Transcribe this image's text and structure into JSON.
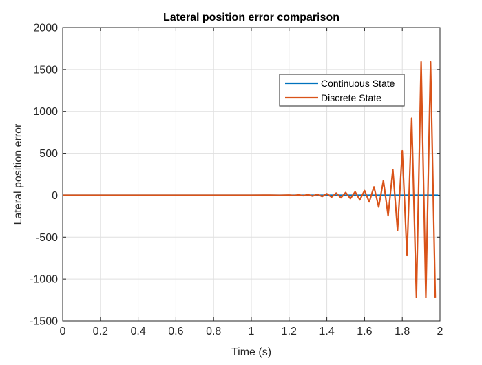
{
  "chart_data": {
    "type": "line",
    "title": "Lateral position error comparison",
    "xlabel": "Time (s)",
    "ylabel": "Lateral position error",
    "xlim": [
      0,
      2
    ],
    "ylim": [
      -1500,
      2000
    ],
    "xticks": [
      0,
      0.2,
      0.4,
      0.6,
      0.8,
      1,
      1.2,
      1.4,
      1.6,
      1.8,
      2
    ],
    "xtick_labels": [
      "0",
      "0.2",
      "0.4",
      "0.6",
      "0.8",
      "1",
      "1.2",
      "1.4",
      "1.6",
      "1.8",
      "2"
    ],
    "yticks": [
      -1500,
      -1000,
      -500,
      0,
      500,
      1000,
      1500,
      2000
    ],
    "ytick_labels": [
      "-1500",
      "-1000",
      "-500",
      "0",
      "500",
      "1000",
      "1500",
      "2000"
    ],
    "grid": true,
    "legend_position": "top-right",
    "series": [
      {
        "name": "Continuous State",
        "color": "#0072BD",
        "x": [
          0,
          0.5,
          1.0,
          1.5,
          1.99
        ],
        "y": [
          0,
          0,
          0,
          0,
          0
        ]
      },
      {
        "name": "Discrete State",
        "color": "#D95319",
        "x": [
          0,
          1.0,
          1.1,
          1.15,
          1.2,
          1.225,
          1.25,
          1.275,
          1.3,
          1.325,
          1.35,
          1.375,
          1.4,
          1.425,
          1.45,
          1.475,
          1.5,
          1.525,
          1.55,
          1.575,
          1.6,
          1.625,
          1.65,
          1.675,
          1.7,
          1.725,
          1.75,
          1.775,
          1.8,
          1.825,
          1.85,
          1.875,
          1.9,
          1.925,
          1.95,
          1.975
        ],
        "y": [
          0,
          0,
          1,
          -1,
          2,
          -3,
          4,
          -5,
          7,
          -10,
          12,
          -15,
          18,
          -22,
          25,
          -30,
          32,
          -40,
          40,
          -55,
          55,
          -80,
          100,
          -140,
          175,
          -245,
          305,
          -420,
          530,
          -720,
          920,
          -1220,
          1590,
          -1220,
          1590,
          -1220
        ]
      }
    ]
  }
}
